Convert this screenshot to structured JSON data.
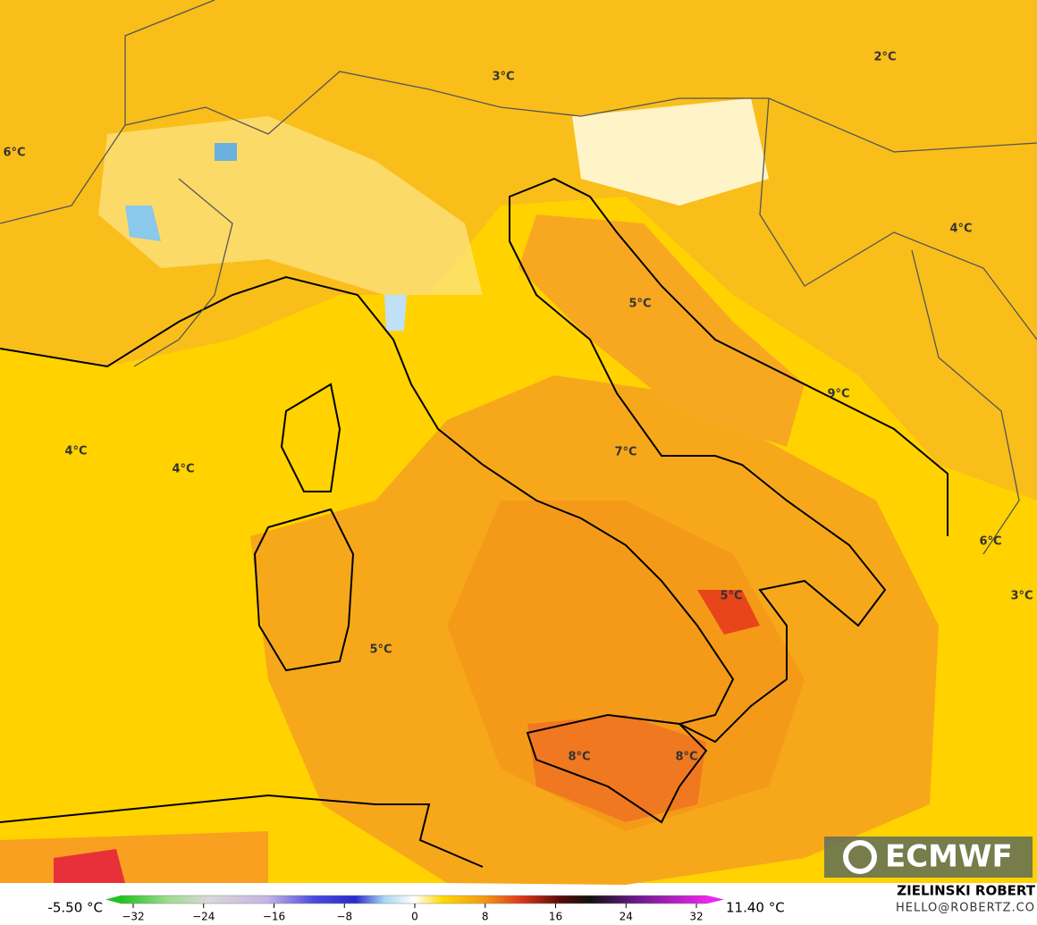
{
  "map_labels": [
    "3°C",
    "2°C",
    "6°C",
    "4°C",
    "5°C",
    "9°C",
    "4°C",
    "4°C",
    "7°C",
    "6°C",
    "5°C",
    "3°C",
    "5°C",
    "8°C",
    "8°C"
  ],
  "logo": "ECMWF",
  "credit": {
    "author": "ZIELINSKI ROBERT",
    "email": "HELLO@ROBERTZ.CO"
  },
  "colorbar": {
    "min_label": "-5.50 °C",
    "max_label": "11.40 °C",
    "range": [
      -32,
      32
    ],
    "ticks": [
      {
        "value": -32,
        "label": "−32"
      },
      {
        "value": -24,
        "label": "−24"
      },
      {
        "value": -16,
        "label": "−16"
      },
      {
        "value": -8,
        "label": "−8"
      },
      0,
      8,
      16,
      24,
      32
    ]
  }
}
